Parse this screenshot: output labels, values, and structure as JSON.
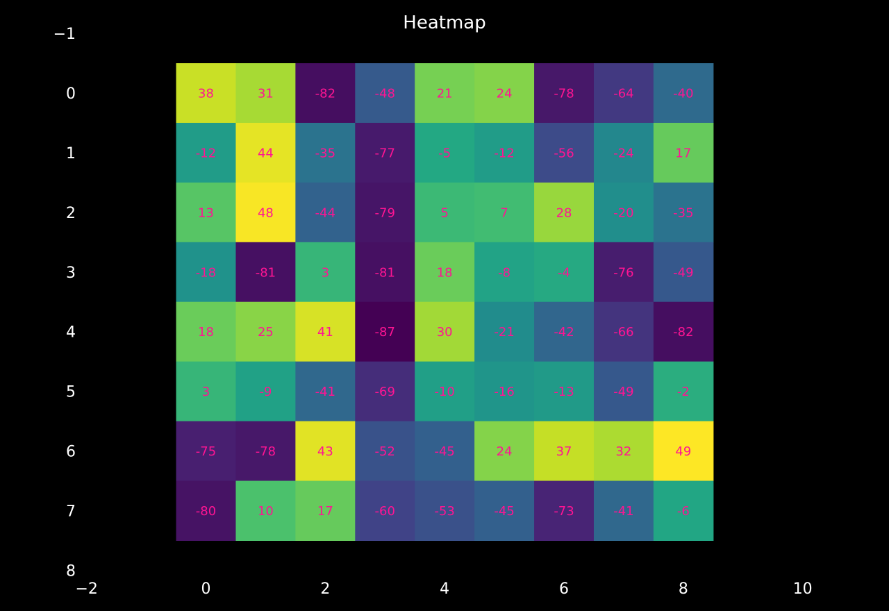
{
  "chart_data": {
    "type": "heatmap",
    "title": "Heatmap",
    "xlabel": "",
    "ylabel": "",
    "xlim": [
      -2,
      10
    ],
    "ylim": [
      8,
      -1
    ],
    "x_ticks": [
      "−2",
      "0",
      "2",
      "4",
      "6",
      "8",
      "10"
    ],
    "y_ticks": [
      "−1",
      "0",
      "1",
      "2",
      "3",
      "4",
      "5",
      "6",
      "7",
      "8"
    ],
    "grid": false,
    "colormap": "viridis",
    "vmin": -87,
    "vmax": 49,
    "rows": [
      [
        38,
        31,
        -82,
        -48,
        21,
        24,
        -78,
        -64,
        -40
      ],
      [
        -12,
        44,
        -35,
        -77,
        -5,
        -12,
        -56,
        -24,
        17
      ],
      [
        13,
        48,
        -44,
        -79,
        5,
        7,
        28,
        -20,
        -35
      ],
      [
        -18,
        -81,
        3,
        -81,
        18,
        -8,
        -4,
        -76,
        -49
      ],
      [
        18,
        25,
        41,
        -87,
        30,
        -21,
        -42,
        -66,
        -82
      ],
      [
        3,
        -9,
        -41,
        -69,
        -10,
        -16,
        -13,
        -49,
        -2
      ],
      [
        -75,
        -78,
        43,
        -52,
        -45,
        24,
        37,
        32,
        49
      ],
      [
        -80,
        10,
        17,
        -60,
        -53,
        -45,
        -73,
        -41,
        -6
      ]
    ]
  },
  "colors": {
    "background": "#000000",
    "text": "#ffffff",
    "cell_label": "#ff1493"
  }
}
